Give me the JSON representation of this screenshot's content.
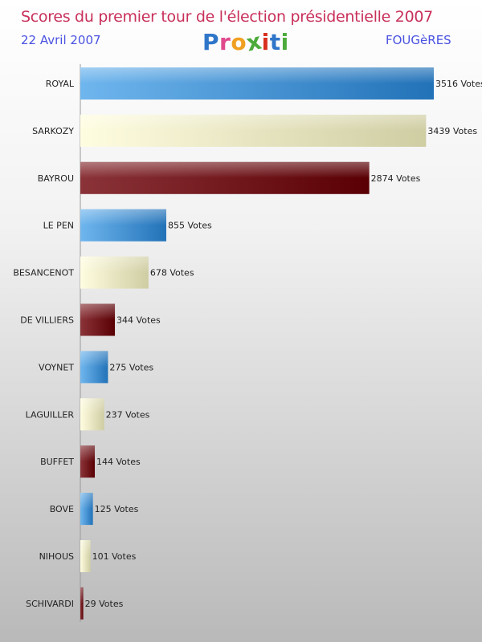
{
  "header": {
    "title": "Scores du premier tour de l'élection présidentielle 2007",
    "date": "22 Avril 2007",
    "city": "FOUGèRES",
    "logo_letters": [
      "P",
      "r",
      "o",
      "x",
      "i",
      "t",
      "i"
    ],
    "logo_colors": [
      "#2f76c9",
      "#e04a8c",
      "#f0a020",
      "#4cab3c",
      "#d8301f",
      "#2f76c9",
      "#4cab3c"
    ]
  },
  "colors": {
    "blue": "#3a8fd6",
    "cream": "#ecebc6",
    "maroon": "#6e1014"
  },
  "chart_data": {
    "type": "bar",
    "orientation": "horizontal",
    "title": "Scores du premier tour de l'élection présidentielle 2007",
    "value_suffix": " Votes",
    "xlim": [
      0,
      3516
    ],
    "categories": [
      "ROYAL",
      "SARKOZY",
      "BAYROU",
      "LE PEN",
      "BESANCENOT",
      "DE VILLIERS",
      "VOYNET",
      "LAGUILLER",
      "BUFFET",
      "BOVE",
      "NIHOUS",
      "SCHIVARDI"
    ],
    "values": [
      3516,
      3439,
      2874,
      855,
      678,
      344,
      275,
      237,
      144,
      125,
      101,
      29
    ],
    "color_cycle": [
      "blue",
      "cream",
      "maroon"
    ]
  }
}
